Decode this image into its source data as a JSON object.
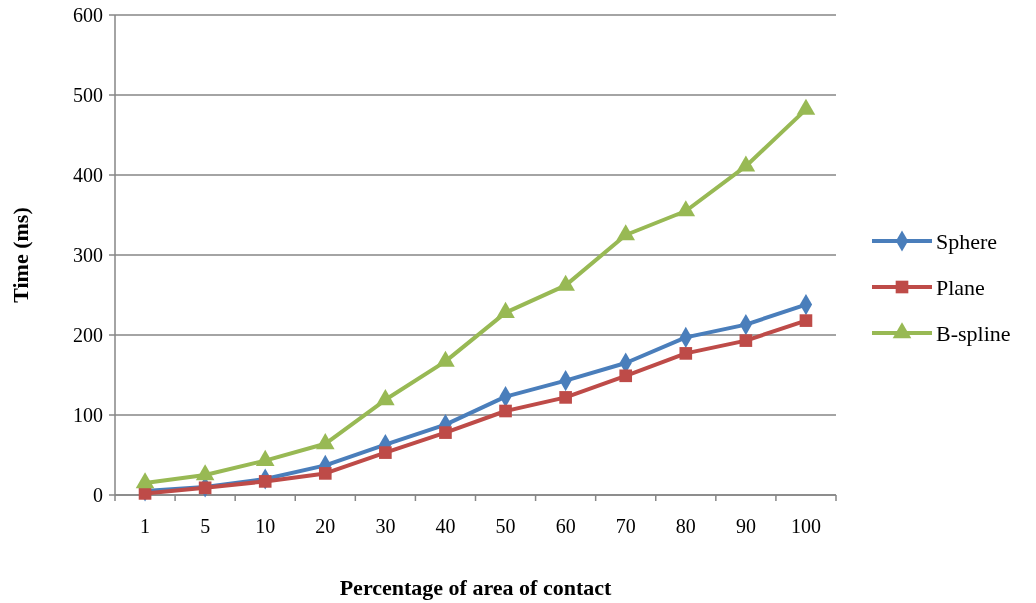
{
  "chart_data": {
    "type": "line",
    "xlabel": "Percentage of area of contact",
    "ylabel": "Time (ms)",
    "categories": [
      "1",
      "5",
      "10",
      "20",
      "30",
      "40",
      "50",
      "60",
      "70",
      "80",
      "90",
      "100"
    ],
    "series": [
      {
        "name": "Sphere",
        "color": "#4a7ebb",
        "marker": "diamond",
        "values": [
          5,
          10,
          20,
          37,
          63,
          88,
          123,
          143,
          165,
          197,
          213,
          238
        ]
      },
      {
        "name": "Plane",
        "color": "#be4b48",
        "marker": "square",
        "values": [
          2,
          9,
          17,
          27,
          53,
          78,
          105,
          122,
          149,
          177,
          193,
          218
        ]
      },
      {
        "name": "B-spline",
        "color": "#98b954",
        "marker": "triangle",
        "values": [
          15,
          25,
          43,
          64,
          119,
          167,
          228,
          262,
          325,
          355,
          411,
          482
        ]
      }
    ],
    "ylim": [
      0,
      600
    ],
    "yticks": [
      0,
      100,
      200,
      300,
      400,
      500,
      600
    ],
    "grid": "y",
    "legend": "right"
  }
}
